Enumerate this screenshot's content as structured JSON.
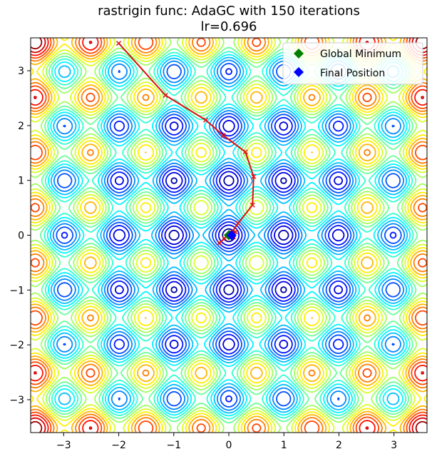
{
  "chart_data": {
    "type": "contour",
    "title": "rastrigin func: AdaGC with 150 iterations",
    "subtitle": "lr=0.696",
    "function": "rastrigin",
    "xlim": [
      -3.6,
      3.6
    ],
    "ylim": [
      -3.6,
      3.6
    ],
    "x_ticks": [
      -3,
      -2,
      -1,
      0,
      1,
      2,
      3
    ],
    "y_ticks": [
      -3,
      -2,
      -1,
      0,
      1,
      2,
      3
    ],
    "x_tick_labels": [
      "−3",
      "−2",
      "−1",
      "0",
      "1",
      "2",
      "3"
    ],
    "y_tick_labels": [
      "−3",
      "−2",
      "−1",
      "0",
      "1",
      "2",
      "3"
    ],
    "grid": false,
    "legend": {
      "placement": "top-right",
      "entries": [
        {
          "label": "Global Minimum",
          "color": "#008000",
          "marker": "diamond"
        },
        {
          "label": "Final Position",
          "color": "#0000ff",
          "marker": "diamond"
        }
      ]
    },
    "global_minimum": {
      "x": 0.0,
      "y": 0.0
    },
    "final_position": {
      "x": 0.05,
      "y": 0.0
    },
    "trajectory": {
      "color": "#dd1111",
      "marker": "x",
      "points": [
        [
          -2.0,
          3.5
        ],
        [
          -1.15,
          2.55
        ],
        [
          -0.42,
          2.1
        ],
        [
          -0.1,
          1.82
        ],
        [
          0.3,
          1.52
        ],
        [
          0.45,
          1.07
        ],
        [
          0.43,
          0.55
        ],
        [
          0.17,
          0.22
        ],
        [
          0.05,
          0.05
        ],
        [
          -0.08,
          -0.06
        ],
        [
          -0.17,
          -0.14
        ],
        [
          -0.04,
          -0.02
        ],
        [
          0.12,
          0.06
        ],
        [
          0.08,
          -0.03
        ],
        [
          0.02,
          0.02
        ],
        [
          0.06,
          0.0
        ],
        [
          0.05,
          0.0
        ]
      ]
    }
  }
}
